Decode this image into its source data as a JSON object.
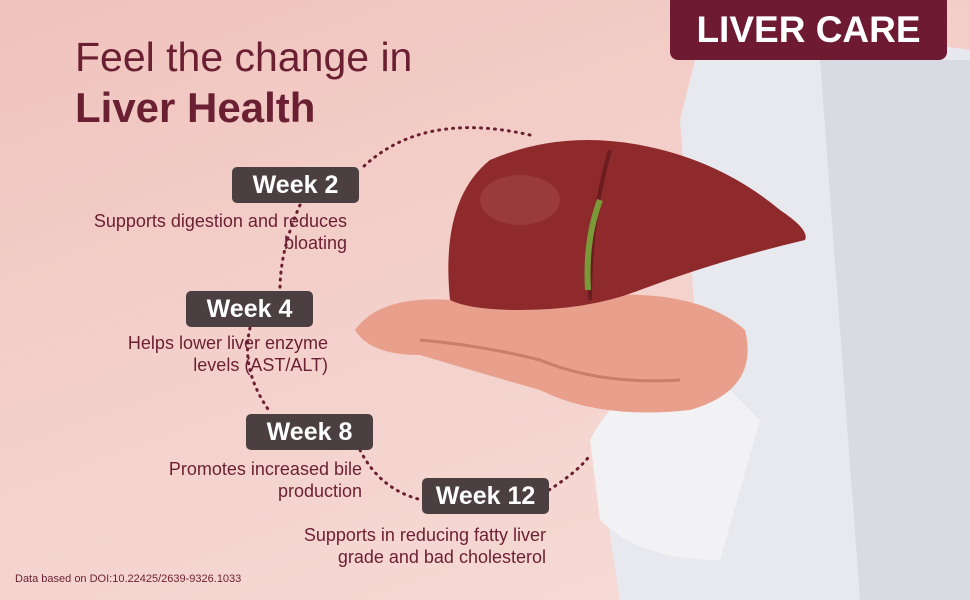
{
  "header": {
    "line1": "Feel the change in",
    "line2": "Liver Health"
  },
  "brand_badge": "LIVER CARE",
  "timeline": [
    {
      "week": "Week 2",
      "line1": "Supports digestion and reduces",
      "line2": "bloating"
    },
    {
      "week": "Week 4",
      "line1": "Helps lower liver enzyme",
      "line2": "levels (AST/ALT)"
    },
    {
      "week": "Week 8",
      "line1": "Promotes increased bile",
      "line2": "production"
    },
    {
      "week": "Week 12",
      "line1": "Supports in reducing fatty liver",
      "line2": "grade and bad cholesterol"
    }
  ],
  "footnote": "Data based on DOI:10.22425/2639-9326.1033",
  "colors": {
    "brand": "#6e1a33",
    "badge": "#4b3f41",
    "text": "#6b1f33"
  }
}
